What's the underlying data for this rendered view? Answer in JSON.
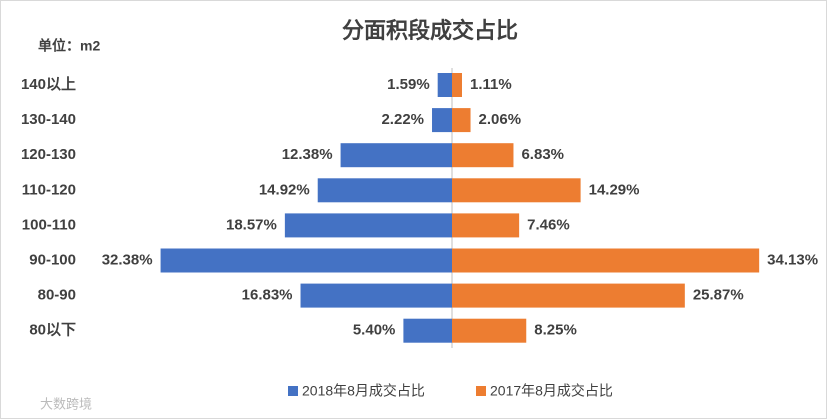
{
  "chart_data": {
    "type": "butterfly",
    "title": "分面积段成交占比",
    "unit_label": "单位：m2",
    "watermark": "大数跨境",
    "categories": [
      "140以上",
      "130-140",
      "120-130",
      "110-120",
      "100-110",
      "90-100",
      "80-90",
      "80以下"
    ],
    "series": [
      {
        "name": "2018年8月成交占比",
        "color": "#4472c4",
        "side": "left",
        "values": [
          1.59,
          2.22,
          12.38,
          14.92,
          18.57,
          32.38,
          16.83,
          5.4
        ],
        "value_labels": [
          "1.59%",
          "2.22%",
          "12.38%",
          "14.92%",
          "18.57%",
          "32.38%",
          "16.83%",
          "5.40%"
        ]
      },
      {
        "name": "2017年8月成交占比",
        "color": "#ed7d31",
        "side": "right",
        "values": [
          1.11,
          2.06,
          6.83,
          14.29,
          7.46,
          34.13,
          25.87,
          8.25
        ],
        "value_labels": [
          "1.11%",
          "2.06%",
          "6.83%",
          "14.29%",
          "7.46%",
          "34.13%",
          "25.87%",
          "8.25%"
        ]
      }
    ],
    "legend": "bottom"
  }
}
